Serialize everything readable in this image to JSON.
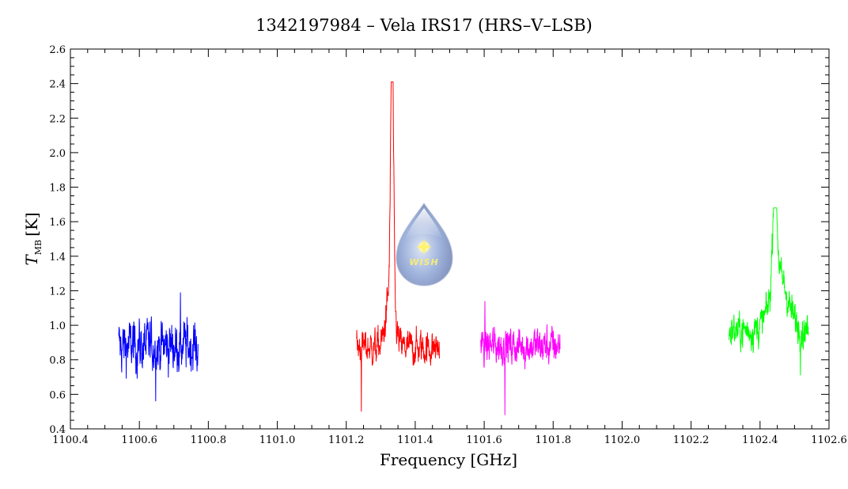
{
  "chart_data": {
    "type": "line",
    "title": "1342197984 – Vela IRS17 (HRS–V–LSB)",
    "xlabel": "Frequency [GHz]",
    "ylabel_main": "T",
    "ylabel_sub": "MB",
    "ylabel_unit": "[K]",
    "xlim": [
      1100.4,
      1102.6
    ],
    "ylim": [
      0.4,
      2.6
    ],
    "x_ticks": [
      "1100.4",
      "1100.6",
      "1100.8",
      "1101.0",
      "1101.2",
      "1101.4",
      "1101.6",
      "1101.8",
      "1102.0",
      "1102.2",
      "1102.4",
      "1102.6"
    ],
    "y_ticks": [
      "0.4",
      "0.6",
      "0.8",
      "1.0",
      "1.2",
      "1.4",
      "1.6",
      "1.8",
      "2.0",
      "2.2",
      "2.4",
      "2.6"
    ],
    "grid": false,
    "logo_text": "WISH",
    "series": [
      {
        "color": "#0000ff",
        "x_range": [
          1100.54,
          1100.77
        ],
        "baseline": 0.88,
        "noise_amp": 0.15,
        "min": 0.56,
        "max": 1.19,
        "lines": []
      },
      {
        "color": "#ff0000",
        "x_range": [
          1101.23,
          1101.47
        ],
        "baseline": 0.87,
        "noise_amp": 0.1,
        "min": 0.5,
        "max": 2.41,
        "lines": [
          {
            "center": 1101.333,
            "peak": 2.41,
            "width": 0.004
          },
          {
            "center": 1101.328,
            "peak": 1.2,
            "width": 0.012
          }
        ]
      },
      {
        "color": "#ff00ff",
        "x_range": [
          1101.59,
          1101.82
        ],
        "baseline": 0.88,
        "noise_amp": 0.11,
        "min": 0.48,
        "max": 1.14,
        "lines": []
      },
      {
        "color": "#00ff00",
        "x_range": [
          1102.31,
          1102.54
        ],
        "baseline": 0.97,
        "noise_amp": 0.1,
        "min": 0.71,
        "max": 1.68,
        "lines": [
          {
            "center": 1102.443,
            "peak": 1.62,
            "width": 0.006
          },
          {
            "center": 1102.455,
            "peak": 1.28,
            "width": 0.025
          }
        ]
      }
    ]
  }
}
